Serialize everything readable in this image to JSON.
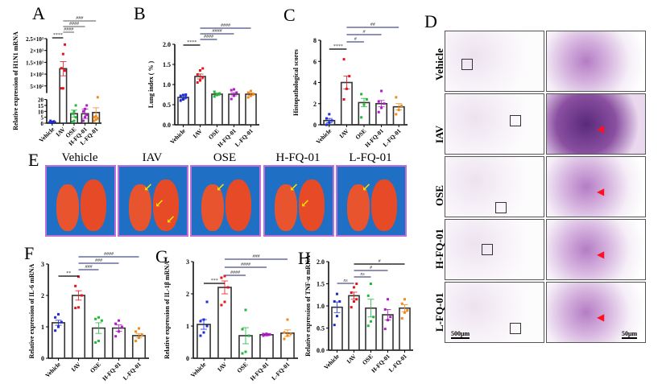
{
  "figure": {
    "panels": [
      "A",
      "B",
      "C",
      "D",
      "E",
      "F",
      "G",
      "H"
    ]
  },
  "chart_data": [
    {
      "id": "A",
      "type": "bar",
      "ylabel": "Relative expression of H1N1 mRNA",
      "categories": [
        "Vehicle",
        "IAV",
        "OSE",
        "H-FQ-01",
        "L-FQ-01"
      ],
      "broken_axis": true,
      "yticks_lower": [
        "0",
        "5",
        "10",
        "15",
        "20"
      ],
      "yticks_upper": [
        "5×10²",
        "1×10³",
        "1.5×10³",
        "2×10³",
        "2.5×10³"
      ],
      "ylim_lower": [
        0,
        20
      ],
      "ylim_upper": [
        200,
        2500
      ],
      "means": [
        1,
        1230,
        8,
        8,
        9
      ],
      "sem": [
        0.5,
        300,
        3,
        4,
        4
      ],
      "points": [
        [
          0.5,
          1,
          1.5,
          2,
          1
        ],
        [
          400,
          400,
          1150,
          1250,
          1850,
          2250
        ],
        [
          1,
          2,
          5,
          8,
          10,
          15
        ],
        [
          2,
          5,
          7,
          10,
          12,
          15
        ],
        [
          2,
          3,
          4,
          5,
          6,
          22
        ]
      ],
      "colors": [
        "#1a2bd8",
        "#e8141c",
        "#22b83a",
        "#b01cc8",
        "#f08a1c"
      ],
      "significance": [
        {
          "from": 0,
          "to": 1,
          "label": "****",
          "color": "#000000"
        },
        {
          "from": 1,
          "to": 2,
          "label": "####",
          "color": "#777777"
        },
        {
          "from": 1,
          "to": 3,
          "label": "####",
          "color": "#777777"
        },
        {
          "from": 1,
          "to": 4,
          "label": "###",
          "color": "#777777"
        }
      ]
    },
    {
      "id": "B",
      "type": "bar",
      "ylabel": "Lung index ( % )",
      "categories": [
        "Vehicle",
        "IAV",
        "OSE",
        "H-FQ-01",
        "L-FQ-01"
      ],
      "yticks": [
        "0.0",
        "0.5",
        "1.0",
        "1.5",
        "2.0"
      ],
      "ylim": [
        0,
        2.0
      ],
      "means": [
        0.68,
        1.2,
        0.76,
        0.76,
        0.76
      ],
      "sem": [
        0.04,
        0.06,
        0.03,
        0.04,
        0.03
      ],
      "points": [
        [
          0.6,
          0.63,
          0.68,
          0.72,
          0.74,
          0.75
        ],
        [
          1.05,
          1.1,
          1.18,
          1.25,
          1.35,
          1.4
        ],
        [
          0.7,
          0.74,
          0.78,
          0.82
        ],
        [
          0.64,
          0.72,
          0.8,
          0.86,
          0.88
        ],
        [
          0.68,
          0.72,
          0.76,
          0.8,
          0.84
        ]
      ],
      "colors": [
        "#1a2bd8",
        "#e8141c",
        "#22b83a",
        "#b01cc8",
        "#f08a1c"
      ],
      "significance": [
        {
          "from": 0,
          "to": 1,
          "label": "****",
          "color": "#000000"
        },
        {
          "from": 1,
          "to": 2,
          "label": "####",
          "color": "#4a4f8a"
        },
        {
          "from": 1,
          "to": 3,
          "label": "####",
          "color": "#4a4f8a"
        },
        {
          "from": 1,
          "to": 4,
          "label": "####",
          "color": "#4a4f8a"
        }
      ]
    },
    {
      "id": "C",
      "type": "bar",
      "ylabel": "Histopathological scores",
      "categories": [
        "Vehicle",
        "IAV",
        "OSE",
        "H-FQ-01",
        "L-FQ-01"
      ],
      "yticks": [
        "0",
        "2",
        "4",
        "6",
        "8"
      ],
      "ylim": [
        0,
        8
      ],
      "means": [
        0.4,
        4.0,
        2.1,
        2.0,
        1.7
      ],
      "sem": [
        0.2,
        0.6,
        0.4,
        0.3,
        0.3
      ],
      "points": [
        [
          0,
          0.2,
          0.4,
          0.6,
          1.0
        ],
        [
          2.4,
          3.4,
          4.6,
          6.2
        ],
        [
          0.7,
          1.9,
          2.4,
          2.9
        ],
        [
          1.2,
          1.6,
          2.0,
          2.2,
          3.2
        ],
        [
          1.0,
          1.4,
          1.8,
          2.6
        ]
      ],
      "colors": [
        "#1a2bd8",
        "#e8141c",
        "#22b83a",
        "#b01cc8",
        "#f08a1c"
      ],
      "significance": [
        {
          "from": 0,
          "to": 1,
          "label": "****",
          "color": "#000000"
        },
        {
          "from": 1,
          "to": 2,
          "label": "#",
          "color": "#4a4f8a"
        },
        {
          "from": 1,
          "to": 3,
          "label": "#",
          "color": "#4a4f8a"
        },
        {
          "from": 1,
          "to": 4,
          "label": "##",
          "color": "#4a4f8a"
        }
      ]
    },
    {
      "id": "F",
      "type": "bar",
      "ylabel": "Relative expression of IL-6 mRNA",
      "categories": [
        "Vehicle",
        "IAV",
        "OSE",
        "H-FQ-01",
        "L-FQ-01"
      ],
      "yticks": [
        "0",
        "1",
        "2",
        "3"
      ],
      "ylim": [
        0,
        3
      ],
      "means": [
        1.13,
        2.0,
        0.96,
        0.96,
        0.72
      ],
      "sem": [
        0.08,
        0.15,
        0.17,
        0.1,
        0.07
      ],
      "points": [
        [
          0.88,
          1.0,
          1.15,
          1.3,
          1.4
        ],
        [
          1.6,
          1.62,
          2.0,
          2.3,
          2.6
        ],
        [
          0.5,
          0.55,
          1.2,
          1.25,
          1.3
        ],
        [
          0.7,
          0.85,
          1.0,
          1.1,
          1.2
        ],
        [
          0.55,
          0.65,
          0.75,
          0.85,
          0.95
        ]
      ],
      "colors": [
        "#1a2bd8",
        "#e8141c",
        "#22b83a",
        "#b01cc8",
        "#f08a1c"
      ],
      "significance": [
        {
          "from": 0,
          "to": 1,
          "label": "**",
          "color": "#000000"
        },
        {
          "from": 1,
          "to": 2,
          "label": "###",
          "color": "#4a4f8a"
        },
        {
          "from": 1,
          "to": 3,
          "label": "###",
          "color": "#4a4f8a"
        },
        {
          "from": 1,
          "to": 4,
          "label": "####",
          "color": "#4a4f8a"
        }
      ]
    },
    {
      "id": "G",
      "type": "bar",
      "ylabel": "Relative expression of IL-1β mRNA",
      "categories": [
        "Vehicle",
        "IAV",
        "OSE",
        "H-FQ-01",
        "L-FQ-01"
      ],
      "yticks": [
        "0",
        "1",
        "2",
        "3"
      ],
      "ylim": [
        0,
        3
      ],
      "means": [
        1.05,
        2.2,
        0.7,
        0.73,
        0.78
      ],
      "sem": [
        0.15,
        0.2,
        0.25,
        0.03,
        0.1
      ],
      "points": [
        [
          0.7,
          0.8,
          1.0,
          1.15,
          1.2,
          1.75
        ],
        [
          1.65,
          1.75,
          2.2,
          2.5,
          2.55
        ],
        [
          0.15,
          0.2,
          0.7,
          0.9,
          1.5
        ],
        [
          0.7,
          0.72,
          0.74,
          0.75,
          0.76
        ],
        [
          0.6,
          0.7,
          0.75,
          0.8,
          1.2
        ]
      ],
      "colors": [
        "#1a2bd8",
        "#e8141c",
        "#22b83a",
        "#b01cc8",
        "#f08a1c"
      ],
      "significance": [
        {
          "from": 0,
          "to": 1,
          "label": "***",
          "color": "#000000"
        },
        {
          "from": 1,
          "to": 2,
          "label": "####",
          "color": "#4a4f8a"
        },
        {
          "from": 1,
          "to": 3,
          "label": "####",
          "color": "#4a4f8a"
        },
        {
          "from": 1,
          "to": 4,
          "label": "###",
          "color": "#4a4f8a"
        }
      ]
    },
    {
      "id": "H",
      "type": "bar",
      "ylabel": "Relative expression of TNF-α mRNA",
      "categories": [
        "Vehicle",
        "IAV",
        "OSE",
        "H-FQ-01",
        "L-FQ-01"
      ],
      "yticks": [
        "0.0",
        "0.5",
        "1.0",
        "1.5",
        "2.0"
      ],
      "ylim": [
        0,
        2.0
      ],
      "means": [
        0.97,
        1.23,
        0.95,
        0.8,
        0.95
      ],
      "sem": [
        0.12,
        0.08,
        0.2,
        0.12,
        0.08
      ],
      "points": [
        [
          0.57,
          0.77,
          1.1,
          1.1,
          1.27
        ],
        [
          0.97,
          1.1,
          1.15,
          1.3,
          1.42,
          1.5
        ],
        [
          0.55,
          0.65,
          0.75,
          1.23,
          1.5
        ],
        [
          0.48,
          0.68,
          0.75,
          0.92,
          1.15
        ],
        [
          0.72,
          0.85,
          0.9,
          1.05,
          1.15
        ]
      ],
      "colors": [
        "#1a2bd8",
        "#e8141c",
        "#22b83a",
        "#b01cc8",
        "#f08a1c"
      ],
      "significance": [
        {
          "from": 0,
          "to": 1,
          "label": "ns",
          "color": "#4a4f8a"
        },
        {
          "from": 1,
          "to": 2,
          "label": "ns",
          "color": "#4a4f8a"
        },
        {
          "from": 1,
          "to": 3,
          "label": "#",
          "color": "#4a4f8a"
        },
        {
          "from": 1,
          "to": 4,
          "label": "#",
          "color": "#000000"
        }
      ]
    }
  ],
  "panel_e": {
    "labels": [
      "Vehicle",
      "IAV",
      "OSE",
      "H-FQ-01",
      "L-FQ-01"
    ],
    "arrows": [
      0,
      3,
      1,
      2,
      1
    ],
    "arrow_color": "#f5e400"
  },
  "panel_d": {
    "rows": [
      "Vehicle",
      "IAV",
      "OSE",
      "H-FQ-01",
      "L-FQ-01"
    ],
    "scale_low": "500μm",
    "scale_high": "50μm"
  }
}
